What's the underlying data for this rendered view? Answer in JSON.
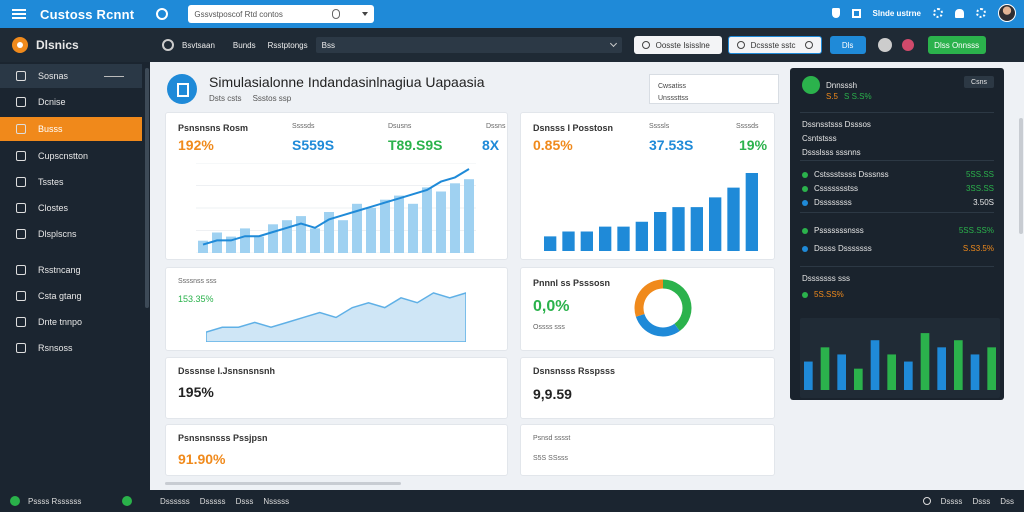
{
  "topbar": {
    "brand": "Custoss Rcnnt",
    "search_text": "Gssvstposcof Rtd contos",
    "user": "Slnde ustrne",
    "colors": {
      "bar": "#1f8ad8"
    }
  },
  "sidebar": {
    "title": "Dlsnics",
    "items": [
      {
        "label": "Sosnas",
        "icon": "grid-icon"
      },
      {
        "label": "Dcnise",
        "icon": "chart-icon"
      },
      {
        "label": "Busss",
        "icon": "box-icon"
      },
      {
        "label": "Cupscnstton",
        "icon": "pie-icon"
      },
      {
        "label": "Tsstes",
        "icon": "doc-icon"
      },
      {
        "label": "Clostes",
        "icon": "link-icon"
      },
      {
        "label": "Dlsplscns",
        "icon": "globe-icon"
      },
      {
        "label": "Rsstncang",
        "icon": "list-icon"
      },
      {
        "label": "Csta gtang",
        "icon": "tag-icon"
      },
      {
        "label": "Dnte tnnpo",
        "icon": "clock-icon"
      },
      {
        "label": "Rsnsoss",
        "icon": "settings-icon"
      }
    ],
    "active_index": 2
  },
  "toolbar": {
    "label": "Bsvtsaan",
    "tabs": [
      "Bunds",
      "Rsstptongs"
    ],
    "input": "Bss",
    "btn1": "Oosste Isisslne",
    "btn2": "Dcssste sstc",
    "blue": "Dls",
    "green": "Dlss Onnsss"
  },
  "header": {
    "title": "Simulasialonne Indandasinlnagiua Uapaasia",
    "sub1": "Dsts csts",
    "sub2": "Ssstos ssp",
    "box_line1": "Cwsatiss",
    "box_line2": "Unsssttss"
  },
  "cards": [
    {
      "title": "Psnsnsns Rosm",
      "big1": "192%",
      "sub1": "Ssssds",
      "big2": "S559S",
      "sub2": "Dsusns",
      "big3": "T89.S9S",
      "sub3": "Dssns",
      "big4": "8X",
      "legend": "Ssnsa"
    },
    {
      "title": "Dsnsss I Posstosn",
      "big1": "0.85%",
      "sub1": "Ssssls",
      "big2": "37.53S",
      "sub2": "Ssssds",
      "big3": "19%",
      "sub3": "Csdtst"
    },
    {
      "title": "Ssssnss sss",
      "big1": "153.35%"
    },
    {
      "title": "Pnnnl ss Psssosn",
      "big1": "0,0%",
      "sub1": "Ossss sss"
    },
    {
      "title": "Dsssnse I.Jsnsnsnsnh",
      "big1": "195%"
    },
    {
      "title": "Dsnsnsss Rsspsss",
      "big1": "9,9.59"
    },
    {
      "title": "Psnsnsnsss Pssjpsn",
      "big1": "91.90%"
    },
    {
      "title": "Psnsd sssst",
      "big1": "S5S SSsss"
    }
  ],
  "chart_data": [
    {
      "type": "bar",
      "values": [
        3,
        5,
        4,
        6,
        4,
        7,
        8,
        9,
        6,
        10,
        8,
        12,
        11,
        13,
        14,
        12,
        16,
        15,
        17,
        18
      ],
      "line": [
        2,
        3,
        3,
        4,
        4,
        5,
        6,
        7,
        6,
        8,
        9,
        10,
        11,
        12,
        13,
        14,
        15,
        17,
        18,
        20
      ]
    },
    {
      "type": "bar",
      "values": [
        3,
        4,
        4,
        5,
        5,
        6,
        8,
        9,
        9,
        11,
        13,
        16
      ]
    },
    {
      "type": "area",
      "values": [
        2,
        3,
        3,
        4,
        3,
        4,
        5,
        6,
        5,
        7,
        8,
        7,
        9,
        8,
        10,
        9,
        10
      ]
    },
    {
      "type": "pie",
      "slices": [
        40,
        30,
        30
      ],
      "colors": [
        "#2bb24c",
        "#1f8ad8",
        "#f08a1c"
      ]
    }
  ],
  "dark_panel": {
    "title": "Dnnsssh",
    "btn": "Csns",
    "badge_vals": [
      "S.5",
      "S S.S%"
    ],
    "list": [
      {
        "label": "Dssnsstsss Dsssos",
        "val": ""
      },
      {
        "label": "Csntstsss",
        "val": ""
      },
      {
        "label": "Dssslsss sssnns",
        "val": ""
      }
    ],
    "metrics": [
      {
        "label": "Cstssstssss Dsssnss",
        "val": "5SS.SS"
      },
      {
        "label": "Cssssssstss",
        "val": "3SS.SS"
      },
      {
        "label": "Dssssssss",
        "val": "3.50S"
      }
    ],
    "m2": [
      {
        "label": "Psssssssnsss",
        "val": "5SS.SS%"
      },
      {
        "label": "Dssss Dsssssss",
        "val": "S.S3.5%"
      },
      {
        "label": "Csnsssssss",
        "val": ""
      }
    ],
    "m3_title": "Dsssssss sss",
    "m3_val": "5S.SS%",
    "bars": [
      4,
      6,
      5,
      3,
      7,
      5,
      4,
      8,
      6,
      7,
      5,
      6
    ]
  },
  "bottombar": {
    "left": "Pssss Rssssss",
    "mid": [
      "Dssssss",
      "Dsssss",
      "Dsss",
      "Nsssss"
    ],
    "right": [
      "Dssss",
      "Dsss",
      "Dss"
    ]
  }
}
